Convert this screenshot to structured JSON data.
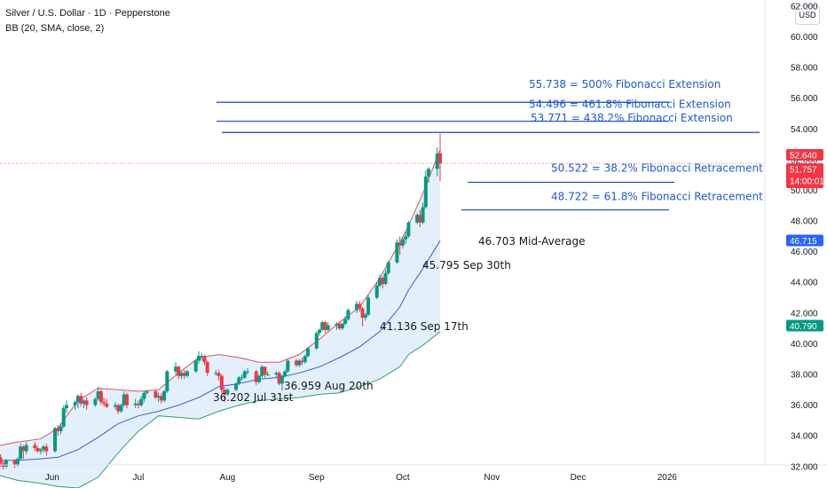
{
  "header": {
    "symbol_title": "Silver / U.S. Dollar · 1D · Pepperstone",
    "indicator": "BB (20, SMA, close, 2)",
    "currency": "USD"
  },
  "colors": {
    "up": "#089981",
    "down": "#f23645",
    "upper_band": "#e0525a",
    "basis": "#3a5bd9",
    "lower_band": "#2ea36a",
    "band_fill": "#e3f0fb",
    "fib_line": "#1a44c2",
    "fib_text": "#1e58d6",
    "current_price": "#f23645",
    "basis_tag": "#2962ff",
    "lower_tag": "#089981"
  },
  "chart_data": {
    "type": "candlestick",
    "title": "Silver / U.S. Dollar · 1D · Pepperstone",
    "y_axis": {
      "ylim": [
        30.6,
        62.4
      ],
      "ticks": [
        "32.000",
        "34.000",
        "36.000",
        "38.000",
        "40.000",
        "42.000",
        "44.000",
        "46.000",
        "48.000",
        "50.000",
        "52.000",
        "54.000",
        "56.000",
        "58.000",
        "60.000",
        "62.000"
      ],
      "tick_values": [
        32,
        34,
        36,
        38,
        40,
        42,
        44,
        46,
        48,
        50,
        52,
        54,
        56,
        58,
        60,
        62
      ]
    },
    "x_axis": {
      "ticks": [
        "Jun",
        "Jul",
        "Aug",
        "Sep",
        "Oct",
        "Nov",
        "Dec",
        "2026"
      ],
      "tick_dates": [
        "2025-06-01",
        "2025-07-01",
        "2025-08-01",
        "2025-09-01",
        "2025-10-01",
        "2025-11-01",
        "2025-12-01",
        "2026-01-01"
      ],
      "range": [
        "2025-05-12",
        "2026-02-04"
      ]
    },
    "candles": [
      {
        "d": "2025-05-12",
        "o": 32.3,
        "h": 32.7,
        "l": 31.9,
        "c": 32.1
      },
      {
        "d": "2025-05-13",
        "o": 32.1,
        "h": 32.8,
        "l": 31.9,
        "c": 32.6
      },
      {
        "d": "2025-05-14",
        "o": 32.6,
        "h": 32.8,
        "l": 32.0,
        "c": 32.2
      },
      {
        "d": "2025-05-15",
        "o": 32.2,
        "h": 32.4,
        "l": 31.8,
        "c": 32.0
      },
      {
        "d": "2025-05-16",
        "o": 32.0,
        "h": 32.5,
        "l": 31.9,
        "c": 32.4
      },
      {
        "d": "2025-05-19",
        "o": 32.4,
        "h": 32.5,
        "l": 31.9,
        "c": 32.1
      },
      {
        "d": "2025-05-20",
        "o": 32.1,
        "h": 32.6,
        "l": 32.0,
        "c": 32.5
      },
      {
        "d": "2025-05-21",
        "o": 32.5,
        "h": 33.5,
        "l": 32.4,
        "c": 33.3
      },
      {
        "d": "2025-05-22",
        "o": 33.3,
        "h": 33.4,
        "l": 32.5,
        "c": 33.0
      },
      {
        "d": "2025-05-23",
        "o": 33.0,
        "h": 33.6,
        "l": 32.8,
        "c": 33.4
      },
      {
        "d": "2025-05-26",
        "o": 33.4,
        "h": 33.6,
        "l": 33.0,
        "c": 33.2
      },
      {
        "d": "2025-05-27",
        "o": 33.2,
        "h": 33.3,
        "l": 32.9,
        "c": 33.0
      },
      {
        "d": "2025-05-28",
        "o": 33.0,
        "h": 33.2,
        "l": 32.8,
        "c": 33.1
      },
      {
        "d": "2025-05-29",
        "o": 33.1,
        "h": 33.4,
        "l": 32.9,
        "c": 33.3
      },
      {
        "d": "2025-05-30",
        "o": 33.3,
        "h": 33.5,
        "l": 32.7,
        "c": 33.0
      },
      {
        "d": "2025-06-02",
        "o": 33.0,
        "h": 34.6,
        "l": 32.9,
        "c": 34.5
      },
      {
        "d": "2025-06-03",
        "o": 34.5,
        "h": 34.7,
        "l": 34.0,
        "c": 34.3
      },
      {
        "d": "2025-06-04",
        "o": 34.3,
        "h": 34.8,
        "l": 34.1,
        "c": 34.6
      },
      {
        "d": "2025-06-05",
        "o": 34.6,
        "h": 36.0,
        "l": 34.5,
        "c": 35.8
      },
      {
        "d": "2025-06-06",
        "o": 35.8,
        "h": 36.3,
        "l": 35.5,
        "c": 36.0
      },
      {
        "d": "2025-06-09",
        "o": 36.0,
        "h": 36.3,
        "l": 35.7,
        "c": 36.2
      },
      {
        "d": "2025-06-10",
        "o": 36.2,
        "h": 36.7,
        "l": 35.8,
        "c": 36.6
      },
      {
        "d": "2025-06-11",
        "o": 36.6,
        "h": 36.8,
        "l": 35.9,
        "c": 36.1
      },
      {
        "d": "2025-06-12",
        "o": 36.1,
        "h": 36.4,
        "l": 35.8,
        "c": 36.3
      },
      {
        "d": "2025-06-13",
        "o": 36.3,
        "h": 36.5,
        "l": 35.7,
        "c": 36.0
      },
      {
        "d": "2025-06-16",
        "o": 36.0,
        "h": 36.5,
        "l": 35.9,
        "c": 36.4
      },
      {
        "d": "2025-06-17",
        "o": 36.4,
        "h": 37.2,
        "l": 36.3,
        "c": 36.9
      },
      {
        "d": "2025-06-18",
        "o": 36.9,
        "h": 37.1,
        "l": 36.0,
        "c": 36.2
      },
      {
        "d": "2025-06-19",
        "o": 36.2,
        "h": 36.5,
        "l": 35.9,
        "c": 36.1
      },
      {
        "d": "2025-06-20",
        "o": 36.1,
        "h": 36.4,
        "l": 35.8,
        "c": 35.9
      },
      {
        "d": "2025-06-23",
        "o": 35.9,
        "h": 36.2,
        "l": 35.7,
        "c": 36.0
      },
      {
        "d": "2025-06-24",
        "o": 36.0,
        "h": 36.1,
        "l": 35.4,
        "c": 35.6
      },
      {
        "d": "2025-06-25",
        "o": 35.6,
        "h": 36.1,
        "l": 35.5,
        "c": 36.0
      },
      {
        "d": "2025-06-26",
        "o": 36.0,
        "h": 36.9,
        "l": 35.9,
        "c": 36.7
      },
      {
        "d": "2025-06-27",
        "o": 36.7,
        "h": 36.8,
        "l": 35.8,
        "c": 36.0
      },
      {
        "d": "2025-06-30",
        "o": 36.0,
        "h": 36.4,
        "l": 35.8,
        "c": 36.1
      },
      {
        "d": "2025-07-01",
        "o": 36.1,
        "h": 36.3,
        "l": 35.8,
        "c": 36.0
      },
      {
        "d": "2025-07-02",
        "o": 36.0,
        "h": 36.6,
        "l": 35.9,
        "c": 36.4
      },
      {
        "d": "2025-07-03",
        "o": 36.4,
        "h": 36.9,
        "l": 36.2,
        "c": 36.8
      },
      {
        "d": "2025-07-04",
        "o": 36.8,
        "h": 37.0,
        "l": 36.7,
        "c": 36.9
      },
      {
        "d": "2025-07-07",
        "o": 36.9,
        "h": 37.0,
        "l": 36.4,
        "c": 36.5
      },
      {
        "d": "2025-07-08",
        "o": 36.5,
        "h": 36.8,
        "l": 36.2,
        "c": 36.6
      },
      {
        "d": "2025-07-09",
        "o": 36.6,
        "h": 36.8,
        "l": 36.1,
        "c": 36.3
      },
      {
        "d": "2025-07-10",
        "o": 36.3,
        "h": 37.0,
        "l": 36.2,
        "c": 36.9
      },
      {
        "d": "2025-07-11",
        "o": 36.9,
        "h": 38.3,
        "l": 36.8,
        "c": 38.2
      },
      {
        "d": "2025-07-14",
        "o": 38.2,
        "h": 38.8,
        "l": 38.0,
        "c": 38.5
      },
      {
        "d": "2025-07-15",
        "o": 38.5,
        "h": 38.6,
        "l": 37.7,
        "c": 37.9
      },
      {
        "d": "2025-07-16",
        "o": 37.9,
        "h": 38.2,
        "l": 37.7,
        "c": 38.1
      },
      {
        "d": "2025-07-17",
        "o": 38.1,
        "h": 38.3,
        "l": 37.7,
        "c": 37.9
      },
      {
        "d": "2025-07-18",
        "o": 37.9,
        "h": 38.3,
        "l": 37.8,
        "c": 38.2
      },
      {
        "d": "2025-07-21",
        "o": 38.2,
        "h": 39.0,
        "l": 38.1,
        "c": 38.9
      },
      {
        "d": "2025-07-22",
        "o": 38.9,
        "h": 39.5,
        "l": 38.7,
        "c": 39.2
      },
      {
        "d": "2025-07-23",
        "o": 39.2,
        "h": 39.4,
        "l": 38.9,
        "c": 39.2
      },
      {
        "d": "2025-07-24",
        "o": 39.2,
        "h": 39.3,
        "l": 38.6,
        "c": 38.8
      },
      {
        "d": "2025-07-25",
        "o": 38.8,
        "h": 38.9,
        "l": 37.9,
        "c": 38.1
      },
      {
        "d": "2025-07-28",
        "o": 38.1,
        "h": 38.3,
        "l": 37.9,
        "c": 38.1
      },
      {
        "d": "2025-07-29",
        "o": 38.1,
        "h": 38.3,
        "l": 37.6,
        "c": 37.9
      },
      {
        "d": "2025-07-30",
        "o": 37.9,
        "h": 38.0,
        "l": 36.8,
        "c": 37.0
      },
      {
        "d": "2025-07-31",
        "o": 37.0,
        "h": 37.2,
        "l": 36.2,
        "c": 36.7
      },
      {
        "d": "2025-08-01",
        "o": 36.7,
        "h": 37.1,
        "l": 36.6,
        "c": 37.0
      },
      {
        "d": "2025-08-04",
        "o": 37.0,
        "h": 37.5,
        "l": 36.9,
        "c": 37.4
      },
      {
        "d": "2025-08-05",
        "o": 37.4,
        "h": 37.9,
        "l": 37.3,
        "c": 37.8
      },
      {
        "d": "2025-08-06",
        "o": 37.8,
        "h": 38.0,
        "l": 37.6,
        "c": 37.8
      },
      {
        "d": "2025-08-07",
        "o": 37.8,
        "h": 38.3,
        "l": 37.7,
        "c": 38.2
      },
      {
        "d": "2025-08-08",
        "o": 38.2,
        "h": 38.4,
        "l": 38.0,
        "c": 38.2
      },
      {
        "d": "2025-08-11",
        "o": 38.2,
        "h": 38.3,
        "l": 37.3,
        "c": 37.5
      },
      {
        "d": "2025-08-12",
        "o": 37.5,
        "h": 38.0,
        "l": 37.4,
        "c": 37.9
      },
      {
        "d": "2025-08-13",
        "o": 37.9,
        "h": 38.6,
        "l": 37.8,
        "c": 38.5
      },
      {
        "d": "2025-08-14",
        "o": 38.5,
        "h": 38.5,
        "l": 37.8,
        "c": 38.0
      },
      {
        "d": "2025-08-15",
        "o": 38.0,
        "h": 38.2,
        "l": 37.9,
        "c": 38.0
      },
      {
        "d": "2025-08-18",
        "o": 38.0,
        "h": 38.2,
        "l": 37.8,
        "c": 38.1
      },
      {
        "d": "2025-08-19",
        "o": 38.1,
        "h": 38.2,
        "l": 37.3,
        "c": 37.4
      },
      {
        "d": "2025-08-20",
        "o": 37.4,
        "h": 38.0,
        "l": 36.959,
        "c": 37.9
      },
      {
        "d": "2025-08-21",
        "o": 37.9,
        "h": 38.3,
        "l": 37.8,
        "c": 38.2
      },
      {
        "d": "2025-08-22",
        "o": 38.2,
        "h": 39.0,
        "l": 38.1,
        "c": 38.9
      },
      {
        "d": "2025-08-25",
        "o": 38.9,
        "h": 39.0,
        "l": 38.5,
        "c": 38.6
      },
      {
        "d": "2025-08-26",
        "o": 38.6,
        "h": 39.0,
        "l": 38.5,
        "c": 38.9
      },
      {
        "d": "2025-08-27",
        "o": 38.9,
        "h": 39.1,
        "l": 38.6,
        "c": 38.8
      },
      {
        "d": "2025-08-28",
        "o": 38.8,
        "h": 39.3,
        "l": 38.7,
        "c": 39.2
      },
      {
        "d": "2025-08-29",
        "o": 39.2,
        "h": 39.8,
        "l": 39.1,
        "c": 39.7
      },
      {
        "d": "2025-09-01",
        "o": 39.7,
        "h": 40.8,
        "l": 39.6,
        "c": 40.7
      },
      {
        "d": "2025-09-02",
        "o": 40.7,
        "h": 41.0,
        "l": 40.5,
        "c": 40.9
      },
      {
        "d": "2025-09-03",
        "o": 40.9,
        "h": 41.5,
        "l": 40.8,
        "c": 41.4
      },
      {
        "d": "2025-09-04",
        "o": 41.4,
        "h": 41.5,
        "l": 40.7,
        "c": 40.9
      },
      {
        "d": "2025-09-05",
        "o": 40.9,
        "h": 41.4,
        "l": 40.8,
        "c": 41.2
      },
      {
        "d": "2025-09-08",
        "o": 41.2,
        "h": 41.4,
        "l": 40.9,
        "c": 41.3
      },
      {
        "d": "2025-09-09",
        "o": 41.3,
        "h": 41.4,
        "l": 40.9,
        "c": 41.0
      },
      {
        "d": "2025-09-10",
        "o": 41.0,
        "h": 41.4,
        "l": 40.9,
        "c": 41.3
      },
      {
        "d": "2025-09-11",
        "o": 41.3,
        "h": 41.8,
        "l": 41.2,
        "c": 41.6
      },
      {
        "d": "2025-09-12",
        "o": 41.6,
        "h": 42.3,
        "l": 41.5,
        "c": 42.2
      },
      {
        "d": "2025-09-15",
        "o": 42.2,
        "h": 42.8,
        "l": 42.0,
        "c": 42.6
      },
      {
        "d": "2025-09-16",
        "o": 42.6,
        "h": 42.8,
        "l": 42.1,
        "c": 42.3
      },
      {
        "d": "2025-09-17",
        "o": 42.3,
        "h": 42.4,
        "l": 41.136,
        "c": 41.7
      },
      {
        "d": "2025-09-18",
        "o": 41.7,
        "h": 42.0,
        "l": 41.5,
        "c": 41.9
      },
      {
        "d": "2025-09-19",
        "o": 41.9,
        "h": 43.2,
        "l": 41.8,
        "c": 43.0
      },
      {
        "d": "2025-09-22",
        "o": 43.0,
        "h": 44.0,
        "l": 42.9,
        "c": 43.8
      },
      {
        "d": "2025-09-23",
        "o": 43.8,
        "h": 44.5,
        "l": 43.7,
        "c": 44.3
      },
      {
        "d": "2025-09-24",
        "o": 44.3,
        "h": 44.4,
        "l": 43.6,
        "c": 43.9
      },
      {
        "d": "2025-09-25",
        "o": 43.9,
        "h": 44.8,
        "l": 43.8,
        "c": 44.6
      },
      {
        "d": "2025-09-26",
        "o": 44.6,
        "h": 45.4,
        "l": 44.5,
        "c": 45.3
      },
      {
        "d": "2025-09-29",
        "o": 45.3,
        "h": 46.8,
        "l": 45.2,
        "c": 46.6
      },
      {
        "d": "2025-09-30",
        "o": 46.6,
        "h": 47.0,
        "l": 45.795,
        "c": 46.4
      },
      {
        "d": "2025-10-01",
        "o": 46.4,
        "h": 47.0,
        "l": 46.2,
        "c": 46.8
      },
      {
        "d": "2025-10-02",
        "o": 46.8,
        "h": 47.3,
        "l": 46.5,
        "c": 47.0
      },
      {
        "d": "2025-10-03",
        "o": 47.0,
        "h": 48.0,
        "l": 46.9,
        "c": 47.9
      },
      {
        "d": "2025-10-06",
        "o": 47.9,
        "h": 48.5,
        "l": 47.8,
        "c": 48.4
      },
      {
        "d": "2025-10-07",
        "o": 48.4,
        "h": 48.7,
        "l": 47.6,
        "c": 47.9
      },
      {
        "d": "2025-10-08",
        "o": 47.9,
        "h": 49.2,
        "l": 47.8,
        "c": 48.9
      },
      {
        "d": "2025-10-09",
        "o": 48.9,
        "h": 51.3,
        "l": 48.8,
        "c": 50.9
      },
      {
        "d": "2025-10-10",
        "o": 50.9,
        "h": 51.5,
        "l": 50.5,
        "c": 51.4
      },
      {
        "d": "2025-10-13",
        "o": 51.4,
        "h": 52.8,
        "l": 50.9,
        "c": 52.4
      },
      {
        "d": "2025-10-14",
        "o": 52.4,
        "h": 53.7,
        "l": 50.6,
        "c": 51.757
      }
    ],
    "bollinger": {
      "dates": [
        "2025-05-12",
        "2025-05-20",
        "2025-05-28",
        "2025-06-03",
        "2025-06-10",
        "2025-06-17",
        "2025-06-24",
        "2025-07-01",
        "2025-07-08",
        "2025-07-15",
        "2025-07-22",
        "2025-07-29",
        "2025-08-05",
        "2025-08-12",
        "2025-08-19",
        "2025-08-26",
        "2025-09-02",
        "2025-09-09",
        "2025-09-16",
        "2025-09-23",
        "2025-09-30",
        "2025-10-03",
        "2025-10-08",
        "2025-10-14"
      ],
      "upper": [
        33.3,
        33.6,
        33.8,
        34.5,
        36.3,
        37.1,
        37.0,
        36.9,
        37.0,
        38.1,
        39.1,
        39.3,
        39.1,
        38.8,
        38.8,
        39.3,
        40.3,
        41.4,
        42.4,
        44.3,
        46.6,
        47.7,
        49.8,
        52.64
      ],
      "basis": [
        32.4,
        32.4,
        32.5,
        32.6,
        33.1,
        33.9,
        34.8,
        35.3,
        35.6,
        36.0,
        36.5,
        37.2,
        37.4,
        37.7,
        37.8,
        38.1,
        38.5,
        39.1,
        39.8,
        40.8,
        42.4,
        43.5,
        44.9,
        46.715
      ],
      "lower": [
        31.5,
        31.1,
        30.9,
        30.7,
        30.6,
        31.3,
        32.9,
        34.3,
        35.3,
        35.2,
        35.1,
        35.6,
        36.0,
        36.3,
        36.4,
        36.5,
        36.7,
        36.8,
        37.2,
        37.7,
        38.5,
        39.3,
        39.9,
        40.79
      ]
    },
    "fibonacci": [
      {
        "value": 55.738,
        "label": "55.738 = 500% Fibonacci Extension"
      },
      {
        "value": 54.496,
        "label": "54.496 = 461.8% Fibonacci Extension"
      },
      {
        "value": 53.771,
        "label": "53.771 = 438.2% Fibonacci Extension"
      },
      {
        "value": 50.522,
        "label": "50.522 = 38.2% Fibonacci Retracement"
      },
      {
        "value": 48.722,
        "label": "48.722 = 61.8% Fibonacci Retracement"
      }
    ],
    "annotations": [
      {
        "value": 46.703,
        "label": "46.703 Mid-Average"
      },
      {
        "value": 45.795,
        "label": "45.795 Sep 30th"
      },
      {
        "value": 41.136,
        "label": "41.136 Sep 17th"
      },
      {
        "value": 36.202,
        "label": "36.202 Jul 31st"
      },
      {
        "value": 36.959,
        "label": "36.959 Aug 20th"
      }
    ],
    "price_tags": {
      "upper": "52.640",
      "last": "51.757",
      "countdown": "14:00:01",
      "basis": "46.715",
      "lower": "40.790"
    },
    "current_price": 51.757,
    "grid": false,
    "legend": "none"
  }
}
